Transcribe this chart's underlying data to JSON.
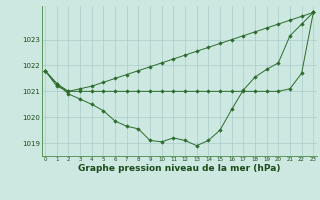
{
  "background_color": "#cce8e0",
  "grid_color": "#aacccc",
  "line_color": "#2d6b2d",
  "marker_color": "#2d6b2d",
  "xlabel": "Graphe pression niveau de la mer (hPa)",
  "xlabel_fontsize": 6.5,
  "yticks": [
    1019,
    1020,
    1021,
    1022,
    1023
  ],
  "xticks": [
    0,
    1,
    2,
    3,
    4,
    5,
    6,
    7,
    8,
    9,
    10,
    11,
    12,
    13,
    14,
    15,
    16,
    17,
    18,
    19,
    20,
    21,
    22,
    23
  ],
  "xlim": [
    -0.3,
    23.3
  ],
  "ylim": [
    1018.5,
    1024.3
  ],
  "figsize": [
    3.2,
    2.0
  ],
  "dpi": 100,
  "series": [
    [
      1021.8,
      1021.3,
      1020.9,
      1020.7,
      1020.5,
      1020.25,
      1019.85,
      1019.65,
      1019.55,
      1019.1,
      1019.05,
      1019.2,
      1019.1,
      1018.9,
      1019.1,
      1019.5,
      1020.3,
      1021.05,
      1021.55,
      1021.85,
      1022.1,
      1023.15,
      1023.6,
      1024.05
    ],
    [
      1021.8,
      1021.3,
      1021.0,
      1021.0,
      1021.0,
      1021.0,
      1021.0,
      1021.0,
      1021.0,
      1021.0,
      1021.0,
      1021.0,
      1021.0,
      1021.0,
      1021.0,
      1021.0,
      1021.0,
      1021.0,
      1021.0,
      1021.0,
      1021.0,
      1021.1,
      1021.7,
      1024.05
    ],
    [
      1021.8,
      1021.2,
      1021.0,
      1021.1,
      1021.2,
      1021.35,
      1021.5,
      1021.65,
      1021.8,
      1021.95,
      1022.1,
      1022.25,
      1022.4,
      1022.55,
      1022.7,
      1022.85,
      1023.0,
      1023.15,
      1023.3,
      1023.45,
      1023.6,
      1023.75,
      1023.9,
      1024.05
    ]
  ]
}
